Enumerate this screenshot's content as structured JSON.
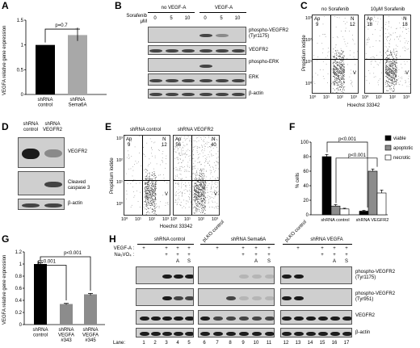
{
  "panels": [
    "A",
    "B",
    "C",
    "D",
    "E",
    "F",
    "G",
    "H"
  ],
  "A": {
    "ylabel": "VEGFA relative gene expression",
    "pvalue": "p=0.7",
    "ticks": [
      "0",
      "0.5",
      "1",
      "1.5"
    ],
    "categories": [
      "shRNA\ncontrol",
      "shRNA\nSema6A"
    ]
  },
  "B": {
    "conditions": [
      "no VEGF-A",
      "VEGF-A"
    ],
    "sorafenib_label": "Sorafenib\nμM",
    "doses": [
      "0",
      "5",
      "10",
      "0",
      "5",
      "10"
    ],
    "blots": [
      "phospho-VEGFR2\n(Tyr1175)",
      "VEGFR2",
      "phospho-ERK",
      "ERK",
      "β-actin"
    ]
  },
  "C": {
    "titles": [
      "no Sorafenib",
      "10μM Sorafenib"
    ],
    "ylabel": "Propidium iodide",
    "xlabel": "Hoechst 33342",
    "quad": [
      {
        "ap": "Ap\n9",
        "n": "N\n12",
        "v": "V"
      },
      {
        "ap": "Ap\n18",
        "n": "N\n18",
        "v": "V"
      }
    ]
  },
  "D": {
    "lanes": [
      "shRNA\ncontrol",
      "shRNA\nVEGFR2"
    ],
    "blots": [
      "VEGFR2",
      "Cleaved\ncaspase 3",
      "β-actin"
    ]
  },
  "E": {
    "titles": [
      "shRNA control",
      "shRNA VEGFR2"
    ],
    "ylabel": "Propidium iodide",
    "xlabel": "Hoechst 33342",
    "quad": [
      {
        "ap": "Ap\n9",
        "n": "N\n12",
        "v": "V"
      },
      {
        "ap": "Ap\n56",
        "n": "N\n40",
        "v": "V"
      }
    ]
  },
  "F": {
    "ylabel": "% cells",
    "ticks": [
      "0",
      "20",
      "40",
      "60",
      "80",
      "100"
    ],
    "pvalues": [
      "p<0.001",
      "p<0.001"
    ],
    "legend": [
      "viable",
      "apoptotic",
      "necrotic"
    ],
    "categories": [
      "shRNA control",
      "shRNA VEGFR2"
    ]
  },
  "G": {
    "ylabel": "VEGFA relative gene expression",
    "ticks": [
      "0",
      "0.2",
      "0.4",
      "0.6",
      "0.8",
      "1",
      "1.2"
    ],
    "pvalues": [
      "p<0.001",
      "p<0.001"
    ],
    "categories": [
      "shRNA\ncontrol",
      "shRNA\nVEGFA\n#343",
      "shRNA\nVEGFA\n#345"
    ]
  },
  "H": {
    "groups": [
      "shRNA control",
      "pLKO control",
      "shRNA Sema6A",
      "pLKO control",
      "shRNA VEGFA"
    ],
    "row_labels": [
      "VEGF-A :",
      "Na₃VO₄ :"
    ],
    "plus": "+",
    "markers": [
      "A",
      "S"
    ],
    "blots": [
      "phospho-VEGFR2\n(Tyr1175)",
      "phospho-VEGFR2\n(Tyr951)",
      "VEGFR2",
      "β-actin"
    ],
    "lane_label": "Lane:",
    "lanes": [
      "1",
      "2",
      "3",
      "4",
      "5",
      "6",
      "7",
      "8",
      "9",
      "10",
      "11",
      "12",
      "13",
      "14",
      "15",
      "16",
      "17"
    ]
  },
  "chart_data": [
    {
      "type": "bar",
      "panel": "A",
      "categories": [
        "shRNA control",
        "shRNA Sema6A"
      ],
      "values": [
        1.0,
        1.2
      ],
      "errors": [
        0,
        0.12
      ],
      "colors": [
        "#000000",
        "#a8a8a8"
      ],
      "ylabel": "VEGFA relative gene expression",
      "ylim": [
        0,
        1.5
      ]
    },
    {
      "type": "bar",
      "panel": "F",
      "categories": [
        "shRNA control",
        "shRNA VEGFR2"
      ],
      "series": [
        {
          "name": "viable",
          "values": [
            80,
            5
          ],
          "errors": [
            3,
            1
          ],
          "color": "#000000"
        },
        {
          "name": "apoptotic",
          "values": [
            12,
            60
          ],
          "errors": [
            2,
            3
          ],
          "color": "#8c8c8c"
        },
        {
          "name": "necrotic",
          "values": [
            8,
            30
          ],
          "errors": [
            1,
            4
          ],
          "color": "#ffffff"
        }
      ],
      "ylabel": "% cells",
      "ylim": [
        0,
        100
      ],
      "legend_position": "top-right"
    },
    {
      "type": "bar",
      "panel": "G",
      "categories": [
        "shRNA control",
        "shRNA VEGFA #343",
        "shRNA VEGFA #345"
      ],
      "values": [
        1.0,
        0.34,
        0.5
      ],
      "errors": [
        0.02,
        0.01,
        0.015
      ],
      "colors": [
        "#000000",
        "#8c8c8c",
        "#8c8c8c"
      ],
      "ylabel": "VEGFA relative gene expression",
      "ylim": [
        0,
        1.2
      ]
    }
  ]
}
